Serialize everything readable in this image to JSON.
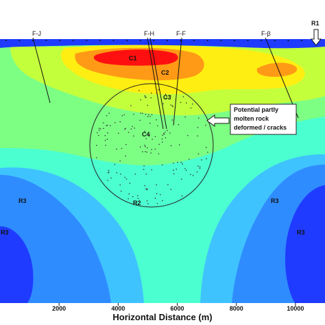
{
  "chart_data": {
    "type": "heatmap",
    "xlabel": "Horizontal Distance (m)",
    "xlim": [
      0,
      11000
    ],
    "x_ticks": [
      2000,
      4000,
      6000,
      8000,
      10000
    ],
    "colors": {
      "dark_blue": "#1f3bff",
      "blue": "#2f8cff",
      "light_blue": "#3fc3ff",
      "cyan": "#4bffd0",
      "green": "#7dff84",
      "yellow_green": "#c4ff3c",
      "yellow": "#ffee12",
      "orange": "#ff9a16",
      "red": "#ff1010"
    },
    "fault_labels": [
      "F-J",
      "F-H",
      "F-F",
      "F-β"
    ],
    "conductive_zones": [
      "C1",
      "C2",
      "C3",
      "C4"
    ],
    "resistive_zones": [
      "R1",
      "R2",
      "R3",
      "R3",
      "R3"
    ],
    "annotation": [
      "Potential partly",
      "molten rock",
      "deformed / cracks"
    ]
  }
}
